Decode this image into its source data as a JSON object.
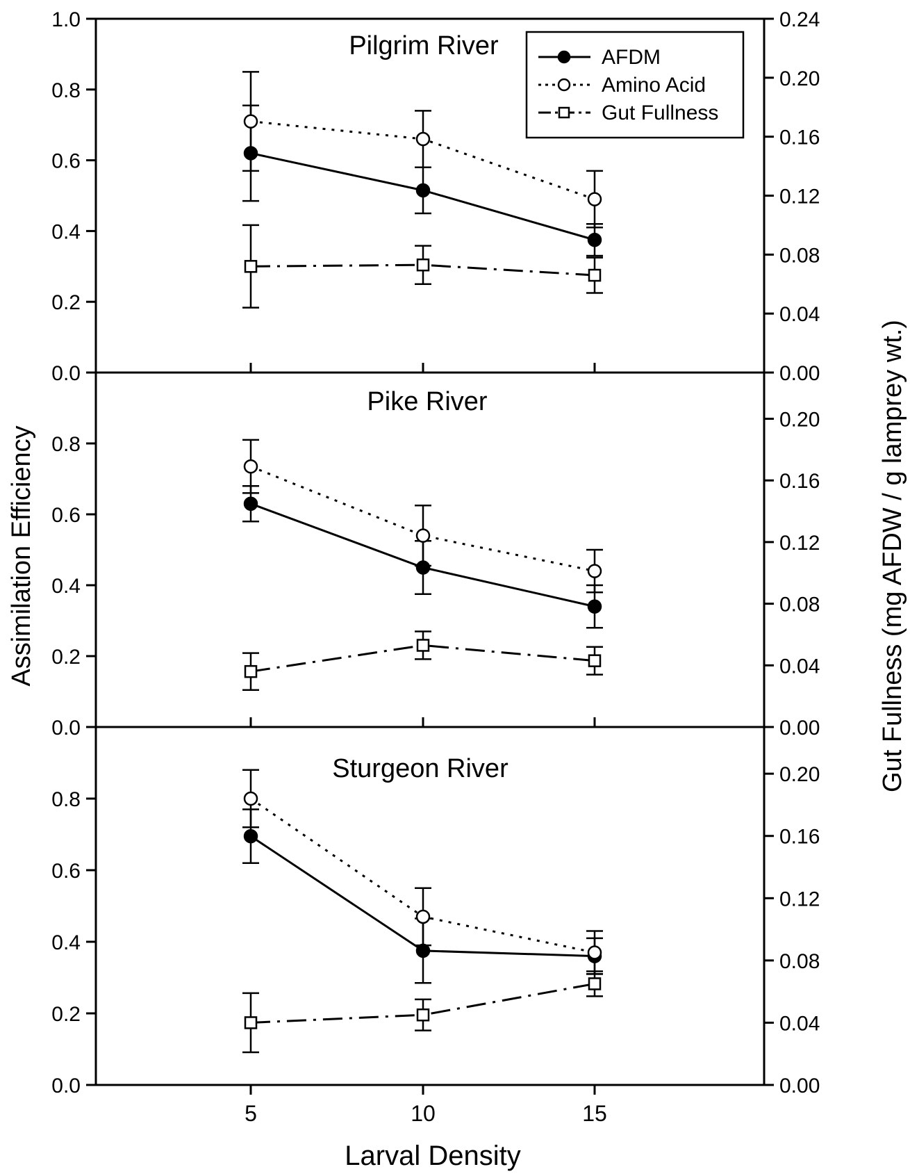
{
  "chart_data": {
    "type": "line",
    "x": [
      5,
      10,
      15
    ],
    "x_ticks": [
      "5",
      "10",
      "15"
    ],
    "xlabel": "Larval Density",
    "ylabel_left": "Assimilation Efficiency",
    "ylabel_right": "Gut Fullness (mg AFDW / g  lamprey wt.)",
    "legend": {
      "placement": "top-right of top panel",
      "entries": [
        "AFDM",
        "Amino Acid",
        "Gut Fullness"
      ]
    },
    "panels": [
      {
        "title": "Pilgrim River",
        "left_ticks": [
          "0.0",
          "0.2",
          "0.4",
          "0.6",
          "0.8",
          "1.0"
        ],
        "right_ticks": [
          "0.00",
          "0.04",
          "0.08",
          "0.12",
          "0.16",
          "0.20",
          "0.24"
        ],
        "left_ylim": [
          0,
          1.0
        ],
        "right_ylim": [
          0,
          0.24
        ],
        "series": [
          {
            "name": "AFDM",
            "axis": "left",
            "values": [
              0.62,
              0.515,
              0.375
            ],
            "err": [
              0.135,
              0.065,
              0.045
            ]
          },
          {
            "name": "Amino Acid",
            "axis": "left",
            "values": [
              0.71,
              0.66,
              0.49
            ],
            "err": [
              0.14,
              0.08,
              0.08
            ]
          },
          {
            "name": "Gut Fullness",
            "axis": "right",
            "values": [
              0.072,
              0.073,
              0.066
            ],
            "err": [
              0.028,
              0.013,
              0.012
            ]
          }
        ]
      },
      {
        "title": "Pike River",
        "left_ticks": [
          "0.0",
          "0.2",
          "0.4",
          "0.6",
          "0.8"
        ],
        "right_ticks": [
          "0.00",
          "0.04",
          "0.08",
          "0.12",
          "0.16",
          "0.20"
        ],
        "left_ylim": [
          0,
          1.0
        ],
        "right_ylim": [
          0,
          0.23
        ],
        "series": [
          {
            "name": "AFDM",
            "axis": "left",
            "values": [
              0.63,
              0.45,
              0.34
            ],
            "err": [
              0.05,
              0.075,
              0.06
            ]
          },
          {
            "name": "Amino Acid",
            "axis": "left",
            "values": [
              0.735,
              0.54,
              0.44
            ],
            "err": [
              0.075,
              0.085,
              0.06
            ]
          },
          {
            "name": "Gut Fullness",
            "axis": "right",
            "values": [
              0.036,
              0.053,
              0.043
            ],
            "err": [
              0.012,
              0.009,
              0.009
            ]
          }
        ]
      },
      {
        "title": "Sturgeon River",
        "left_ticks": [
          "0.0",
          "0.2",
          "0.4",
          "0.6",
          "0.8"
        ],
        "right_ticks": [
          "0.00",
          "0.04",
          "0.08",
          "0.12",
          "0.16",
          "0.20"
        ],
        "left_ylim": [
          0,
          1.0
        ],
        "right_ylim": [
          0,
          0.23
        ],
        "series": [
          {
            "name": "AFDM",
            "axis": "left",
            "values": [
              0.695,
              0.375,
              0.36
            ],
            "err": [
              0.075,
              0.09,
              0.05
            ]
          },
          {
            "name": "Amino Acid",
            "axis": "left",
            "values": [
              0.8,
              0.47,
              0.37
            ],
            "err": [
              0.08,
              0.08,
              0.06
            ]
          },
          {
            "name": "Gut Fullness",
            "axis": "right",
            "values": [
              0.04,
              0.045,
              0.065
            ],
            "err": [
              0.019,
              0.01,
              0.008
            ]
          }
        ]
      }
    ]
  }
}
